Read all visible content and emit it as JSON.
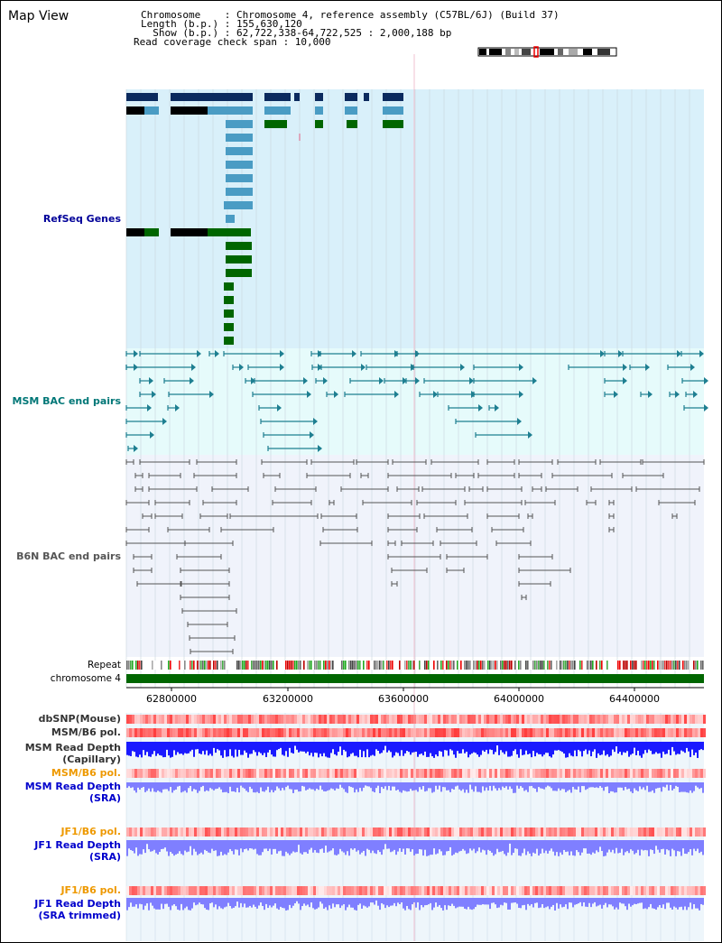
{
  "window": {
    "title": "Map View"
  },
  "info": {
    "chromosome_line": "Chromosome    : Chromosome 4, reference assembly (C57BL/6J) (Build 37)",
    "length_line": "Length (b.p.) : 155,630,120",
    "show_line": "  Show (b.p.) : 62,722,338-64,722,525 : 2,000,188 bp",
    "span_line": "Read coverage check span : 10,000"
  },
  "tracks": {
    "refseq": {
      "label": "RefSeq Genes",
      "color": "#000099"
    },
    "msm_bac": {
      "label": "MSM BAC end pairs",
      "color": "#007777"
    },
    "b6n_bac": {
      "label": "B6N BAC end pairs",
      "color": "#555555"
    },
    "repeat": {
      "label": "Repeat"
    },
    "chromosome": {
      "label": "chromosome 4"
    },
    "dbsnp": {
      "label": "dbSNP(Mouse)"
    },
    "msm_b6_pol_cap": {
      "label": "MSM/B6 pol."
    },
    "msm_depth_cap": {
      "label1": "MSM Read Depth",
      "label2": "(Capillary)"
    },
    "msm_b6_pol_sra": {
      "label": "MSM/B6 pol.",
      "color": "#ee9900"
    },
    "msm_depth_sra": {
      "label1": "MSM Read Depth",
      "label2": "(SRA)",
      "color": "#0000cc"
    },
    "jf1_b6_pol_1": {
      "label": "JF1/B6 pol.",
      "color": "#ee9900"
    },
    "jf1_depth_sra": {
      "label1": "JF1 Read Depth",
      "label2": "(SRA)",
      "color": "#0000cc"
    },
    "jf1_b6_pol_2": {
      "label": "JF1/B6 pol.",
      "color": "#ee9900"
    },
    "jf1_depth_trim": {
      "label1": "JF1 Read Depth",
      "label2": "(SRA trimmed)",
      "color": "#0000cc"
    }
  },
  "axis": {
    "ticks": [
      "62800000",
      "63200000",
      "63600000",
      "64000000",
      "64400000"
    ]
  },
  "colors": {
    "refseq_bg": "#d9f0fa",
    "msm_bg": "#e6fbfb",
    "b6n_bg": "#f0f3fb",
    "coverage_bg": "#eef6fb",
    "gene_dark": "#0b2a5e",
    "gene_mid": "#4a9cc4",
    "gene_green": "#006600",
    "bac_teal": "#1e7f91",
    "bac_grey": "#555555",
    "depth_blue": "#1a1aff",
    "depth_light": "#7f7fff"
  }
}
